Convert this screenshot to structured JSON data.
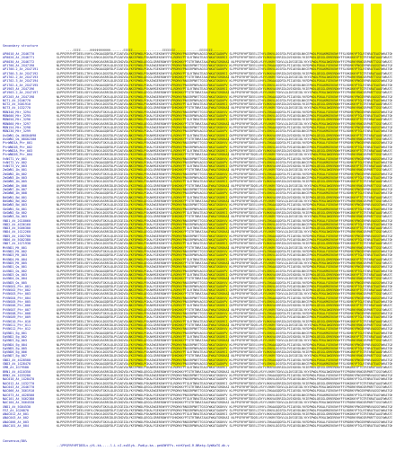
{
  "header": {
    "label": "Secondary structure"
  },
  "footer": {
    "label": "Consensus/80%"
  },
  "highlight_color": "#f3f300",
  "rows": [
    "AP0010_At_2G46770",
    "AP0020_At_2G46771",
    "AP0030_At_2G46772",
    "AP1700_At_2G47190",
    "AP1700.2_At_2G47191",
    "AP1700.3_At_2G47192",
    "AP1702.2_At_2G47193",
    "AP1702.3_At_2G47194",
    "AP1702.4_At_2G47195",
    "AP1903_At_2G47196",
    "AP1903.2_At_2G47197",
    "AP2203_At_2G47198",
    "NST1_At_2G46770",
    "NST2_At_3G61910",
    "NST3_At_1G32770",
    "MDN340_Mtr_3294",
    "MDN600_Mtr_3295",
    "MDN650_Mtr_3296",
    "MDN860_Mtr_3297",
    "MDN154_Mtr_3298",
    "MDN230_Mtr_3299",
    "OsSWN1_Os_06G04090",
    "OsSWN2_Os_08G02300",
    "PtrWND1A_Ptr_001",
    "PtrWND1B_Ptr_002",
    "PtrWND2A_Ptr_003",
    "PtrWND2B_Ptr_004",
    "VvNST1_Vv_001",
    "VvNST2_Vv_002",
    "VvNST3_Vv_003",
    "ZmSWN1_Zm_001",
    "ZmSWN2_Zm_002",
    "ZmSWN3_Zm_003",
    "ZmSWN5_Zm_005",
    "ZmSWN6_Zm_006",
    "ZmSWN7_Zm_007",
    "ZmSWN8_Zm_008",
    "BdSWN1_Bd_001",
    "BdSWN2_Bd_002",
    "BdSWN3_Bd_003",
    "SbSWN1_Sb_001",
    "SbSWN2_Sb_002",
    "SbSWN3_Sb_003",
    "VND1_At_2G18060",
    "VND2_At_4G36160",
    "VND3_At_5G66300",
    "VND4_At_1G12260",
    "VND5_At_1G62700",
    "VND6_At_5G62380",
    "VND7_At_1G71930",
    "MtVND1_Mt_001",
    "MtVND2_Mt_002",
    "MtVND3_Mt_003",
    "MtVND4_Mt_004",
    "MtVND5_Mt_005",
    "OsVND1_Os_001",
    "OsVND2_Os_002",
    "OsVND3_Os_003",
    "OsVND4_Os_004",
    "OsVND5_Os_005",
    "PtVNS01_Ptr_001",
    "PtVNS02_Ptr_002",
    "PtVNS03_Ptr_003",
    "PtVNS04_Ptr_004",
    "PtVNS05_Ptr_005",
    "PtVNS06_Ptr_006",
    "PtVNS07_Ptr_007",
    "PtVNS08_Ptr_008",
    "PtVNS09_Ptr_009",
    "PtVNS10_Ptr_010",
    "PtVNS11_Ptr_011",
    "PtVNS12_Ptr_012",
    "EgVND1_Eg_001",
    "EgVND2_Eg_002",
    "EgVND3_Eg_003",
    "EgVND4_Eg_004",
    "EgVND5_Eg_005",
    "EgVND6_Eg_006",
    "EgVND7_Eg_007",
    "SND2_At_4G28500",
    "SND3_At_1G28470",
    "SMB_At_1G79580",
    "BRN1_At_4G10350",
    "BRN2_At_1G33280",
    "NAC010_At_1G28470",
    "NAC012_At_1G32770",
    "NAC043_At_2G46770",
    "NAC066_At_3G61910",
    "NAC073_At_4G28500",
    "NAC101_At_5G62380",
    "NAC104_At_5G64530",
    "XND1_At_5G64530",
    "FEZ_At_1G26870",
    "ANAC012_At_001",
    "ANAC043_At_002",
    "ANAC066_At_003",
    "ANAC101_At_004"
  ],
  "seq_chunks": [
    "KLPPGFRFHPTDEELVVHYLCRKAAGQDFDLPIIAEVDLYKFDPWDLPGKALFGEKEWYFFSPRDRKYPNGSRPNRVAGSGYWKATGADKPV",
    "SLPPGFRFHPTDEELITHYLSRKVLDGSFDLPVIAEVDLNKCEPWDLPSKAKMGEKEWYFFSLRDRKYPTGLRTNRATEAGYWKATGKDREI",
    "QVPPGFRFHPTDEELVDYYLRKKVASRRIDLDVIKDVDLYKIEPWDLQEGGLGRRERDWYFFSHKDKKYPTGTRTNRATAAGFWKATGRDKAI",
    "NLPPGFRFHPTDQELVSYYLRKRVTGKVLQLDVIGEIDLYKYSPWDLPEKAIWGEREWYFFCPRDRKYRNGSRPNRTTGSGYWKATGKDKVV"
  ],
  "ss_line": "     ----EEEE-----HHHHHHHHHHH-------EEEEE----------------EEEEEEE-------------EEEEEEE------",
  "cons_line": "..lPPGFRFHPTDEELv.yYL.kk.....l.L.vI.evDlyk..PwdLp.ka..gekEWYFFs.rdrKYpnG.R.NRatg.GyWKaTG.dk.v"
}
